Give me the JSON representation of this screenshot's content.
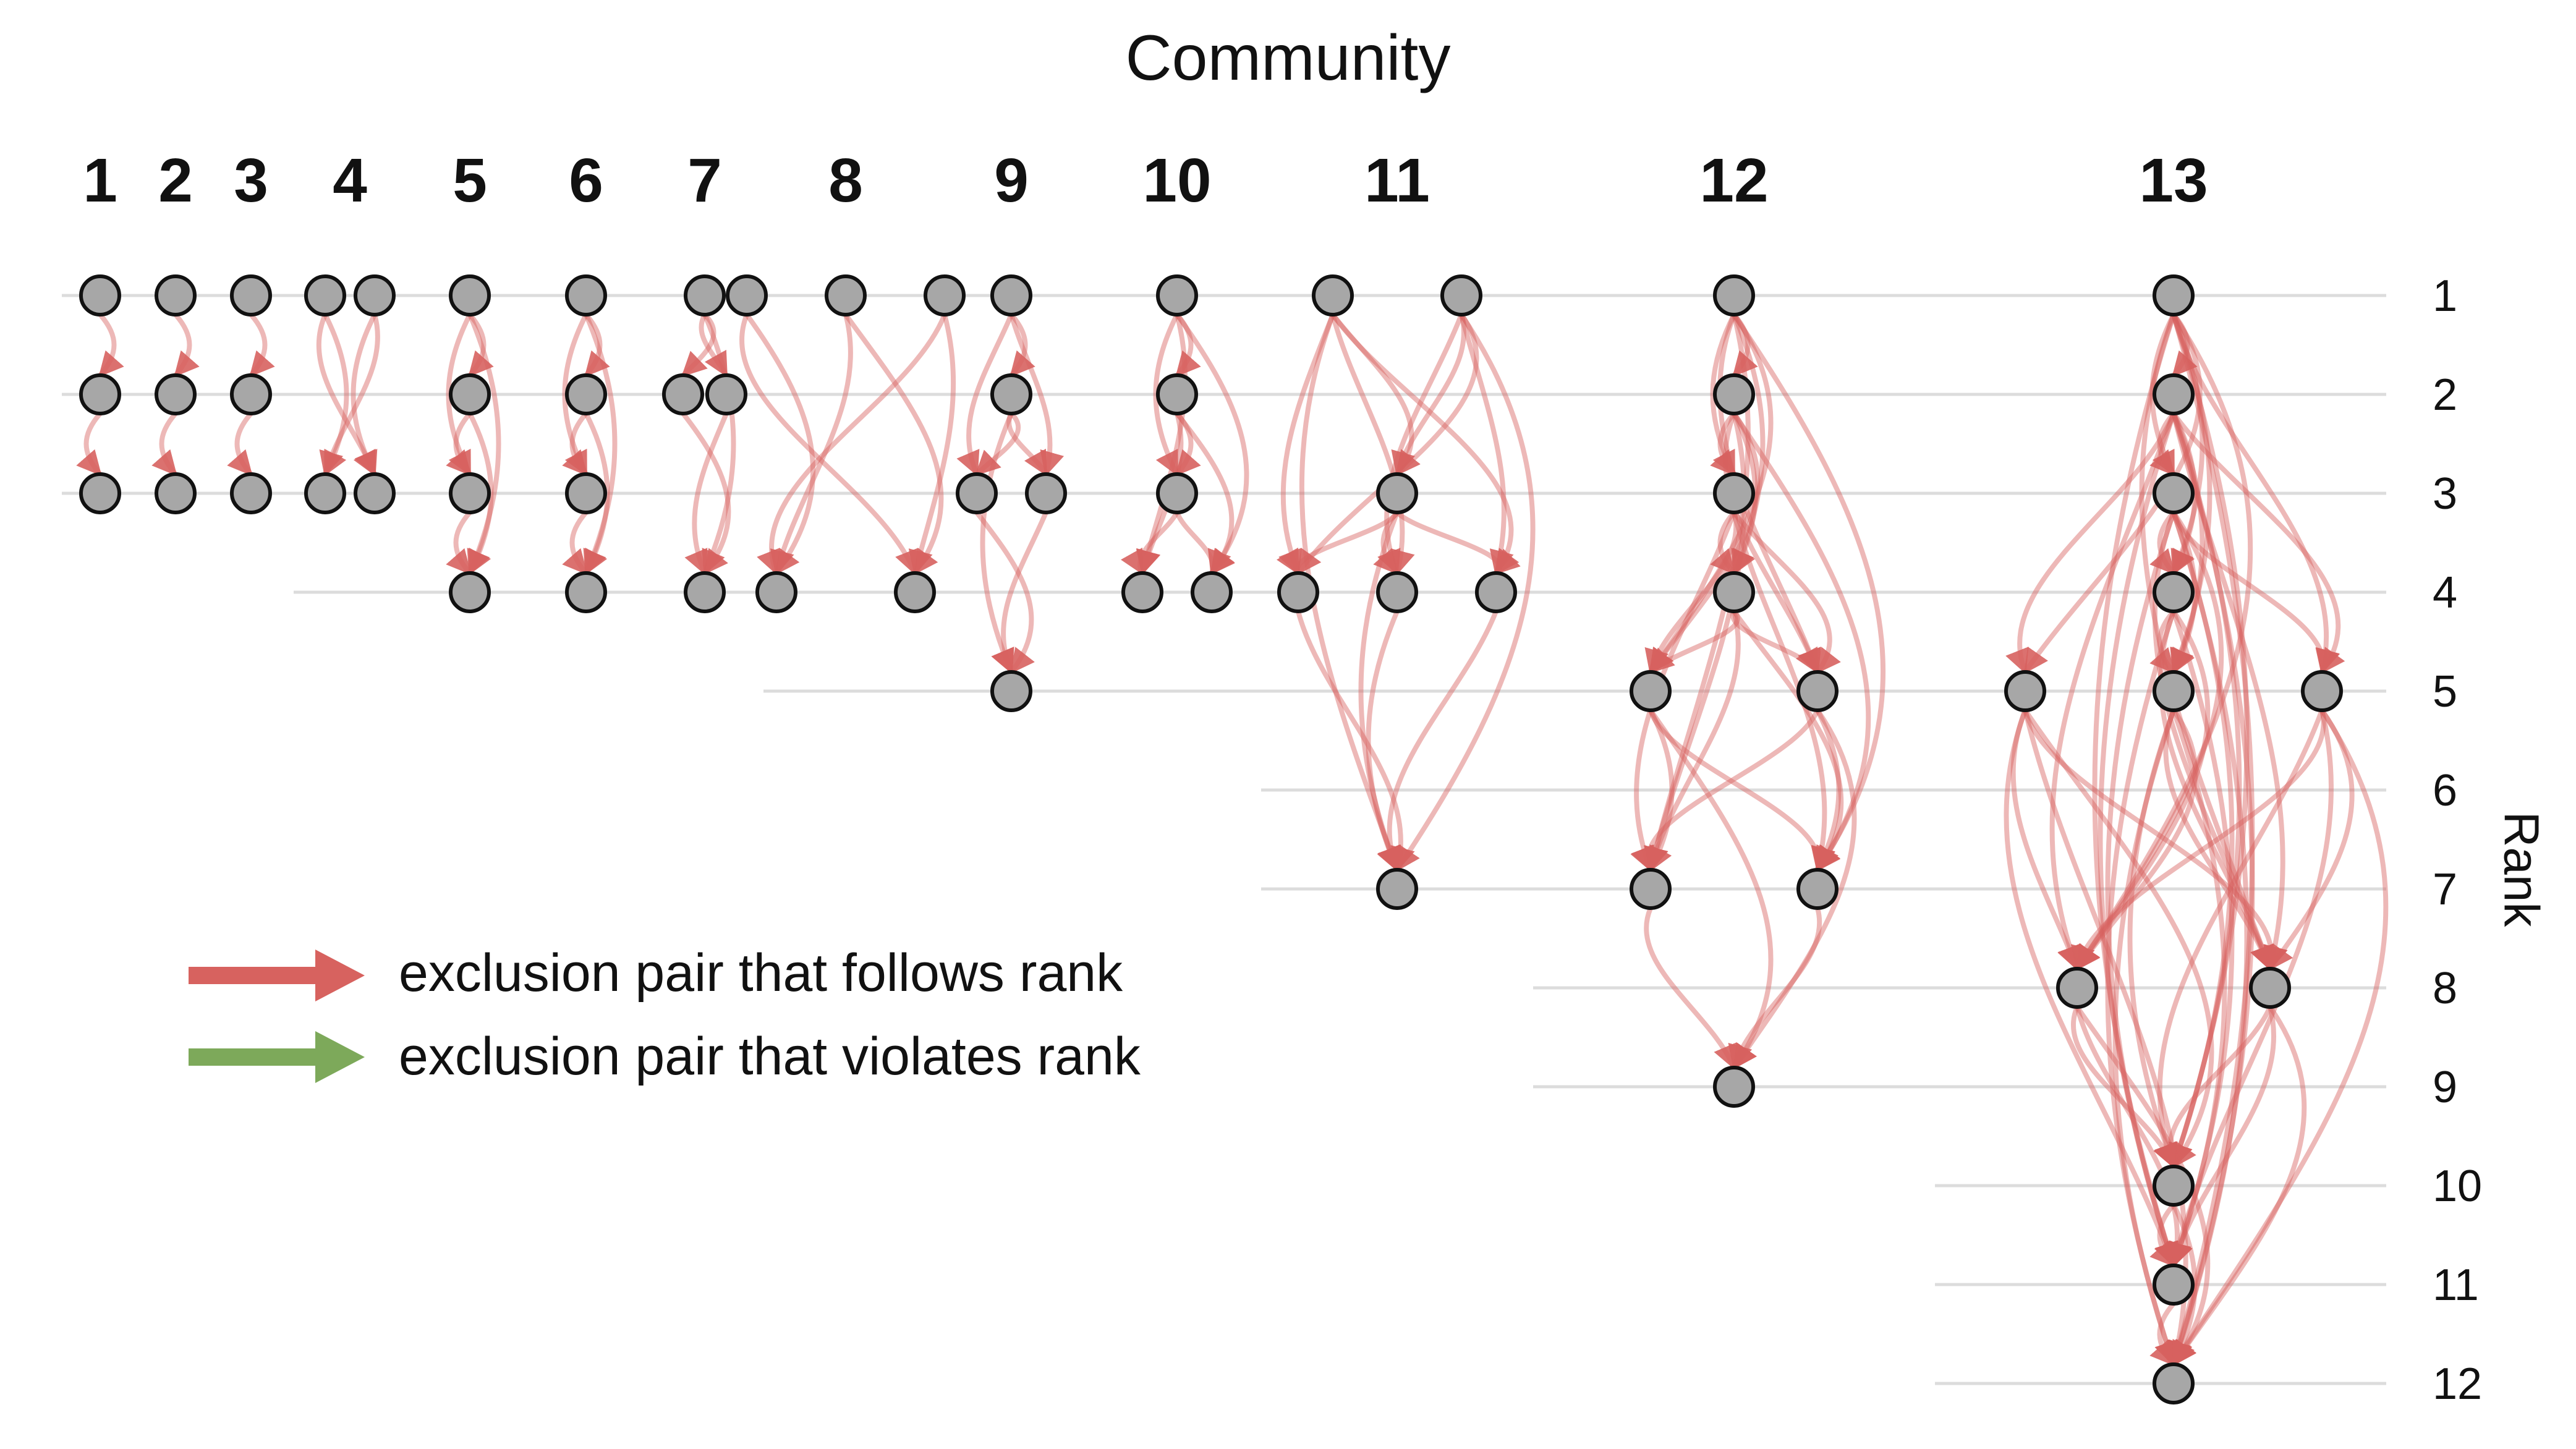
{
  "title": "Community",
  "rank_axis_label": "Rank",
  "rank_labels": [
    "1",
    "2",
    "3",
    "4",
    "5",
    "6",
    "7",
    "8",
    "9",
    "10",
    "11",
    "12"
  ],
  "communities": [
    {
      "label": "1",
      "nodes": [
        [
          1,
          0
        ],
        [
          2,
          0
        ],
        [
          3,
          0
        ]
      ],
      "edges": [
        [
          0,
          1
        ],
        [
          1,
          2
        ]
      ]
    },
    {
      "label": "2",
      "nodes": [
        [
          1,
          0
        ],
        [
          2,
          0
        ],
        [
          3,
          0
        ]
      ],
      "edges": [
        [
          0,
          1
        ],
        [
          1,
          2
        ]
      ]
    },
    {
      "label": "3",
      "nodes": [
        [
          1,
          0
        ],
        [
          2,
          0
        ],
        [
          3,
          0
        ]
      ],
      "edges": [
        [
          0,
          1
        ],
        [
          1,
          2
        ]
      ]
    },
    {
      "label": "4",
      "nodes": [
        [
          1,
          -0.5
        ],
        [
          1,
          0.5
        ],
        [
          3,
          -0.5
        ],
        [
          3,
          0.5
        ]
      ],
      "edges": [
        [
          0,
          2
        ],
        [
          0,
          3
        ],
        [
          1,
          2
        ],
        [
          1,
          3
        ]
      ]
    },
    {
      "label": "5",
      "nodes": [
        [
          1,
          0
        ],
        [
          2,
          0
        ],
        [
          3,
          0
        ],
        [
          4,
          0
        ]
      ],
      "edges": [
        [
          0,
          1
        ],
        [
          0,
          2
        ],
        [
          0,
          3
        ],
        [
          1,
          2
        ],
        [
          1,
          3
        ],
        [
          2,
          3
        ]
      ]
    },
    {
      "label": "6",
      "nodes": [
        [
          1,
          0
        ],
        [
          2,
          0
        ],
        [
          3,
          0
        ],
        [
          4,
          0
        ]
      ],
      "edges": [
        [
          0,
          1
        ],
        [
          0,
          2
        ],
        [
          0,
          3
        ],
        [
          1,
          2
        ],
        [
          1,
          3
        ],
        [
          2,
          3
        ]
      ]
    },
    {
      "label": "7",
      "nodes": [
        [
          1,
          0
        ],
        [
          2,
          -0.5
        ],
        [
          2,
          0.5
        ],
        [
          4,
          0
        ]
      ],
      "edges": [
        [
          0,
          1
        ],
        [
          0,
          2
        ],
        [
          0,
          3
        ],
        [
          1,
          3
        ],
        [
          2,
          3
        ]
      ]
    },
    {
      "label": "8",
      "nodes": [
        [
          1,
          -1
        ],
        [
          1,
          0
        ],
        [
          1,
          1
        ],
        [
          4,
          -0.7
        ],
        [
          4,
          0.7
        ]
      ],
      "edges": [
        [
          0,
          3
        ],
        [
          0,
          4
        ],
        [
          1,
          3
        ],
        [
          1,
          4
        ],
        [
          2,
          3
        ],
        [
          2,
          4
        ]
      ]
    },
    {
      "label": "9",
      "nodes": [
        [
          1,
          0
        ],
        [
          2,
          0
        ],
        [
          3,
          -0.7
        ],
        [
          3,
          0.7
        ],
        [
          5,
          0
        ]
      ],
      "edges": [
        [
          0,
          1
        ],
        [
          0,
          2
        ],
        [
          0,
          3
        ],
        [
          1,
          2
        ],
        [
          1,
          3
        ],
        [
          1,
          4
        ],
        [
          2,
          4
        ],
        [
          3,
          4
        ]
      ]
    },
    {
      "label": "10",
      "nodes": [
        [
          1,
          0
        ],
        [
          2,
          0
        ],
        [
          3,
          0
        ],
        [
          4,
          -0.7
        ],
        [
          4,
          0.7
        ]
      ],
      "edges": [
        [
          0,
          1
        ],
        [
          0,
          2
        ],
        [
          0,
          3
        ],
        [
          0,
          4
        ],
        [
          1,
          2
        ],
        [
          1,
          3
        ],
        [
          1,
          4
        ],
        [
          2,
          3
        ],
        [
          2,
          4
        ]
      ]
    },
    {
      "label": "11",
      "nodes": [
        [
          1,
          -0.65
        ],
        [
          1,
          0.65
        ],
        [
          3,
          0
        ],
        [
          4,
          -1
        ],
        [
          4,
          0
        ],
        [
          4,
          1
        ],
        [
          7,
          0
        ]
      ],
      "edges": [
        [
          0,
          2
        ],
        [
          0,
          3
        ],
        [
          0,
          4
        ],
        [
          0,
          5
        ],
        [
          0,
          6
        ],
        [
          1,
          2
        ],
        [
          1,
          3
        ],
        [
          1,
          4
        ],
        [
          1,
          5
        ],
        [
          1,
          6
        ],
        [
          2,
          3
        ],
        [
          2,
          4
        ],
        [
          2,
          5
        ],
        [
          2,
          6
        ],
        [
          3,
          6
        ],
        [
          4,
          6
        ],
        [
          5,
          6
        ]
      ]
    },
    {
      "label": "12",
      "nodes": [
        [
          1,
          0
        ],
        [
          2,
          0
        ],
        [
          3,
          0
        ],
        [
          4,
          0
        ],
        [
          5,
          -1
        ],
        [
          5,
          1
        ],
        [
          7,
          -1
        ],
        [
          7,
          1
        ],
        [
          9,
          0
        ]
      ],
      "edges": [
        [
          0,
          1
        ],
        [
          0,
          2
        ],
        [
          0,
          3
        ],
        [
          0,
          4
        ],
        [
          0,
          5
        ],
        [
          0,
          6
        ],
        [
          0,
          7
        ],
        [
          1,
          2
        ],
        [
          1,
          3
        ],
        [
          1,
          4
        ],
        [
          1,
          5
        ],
        [
          1,
          6
        ],
        [
          1,
          7
        ],
        [
          2,
          3
        ],
        [
          2,
          4
        ],
        [
          2,
          5
        ],
        [
          2,
          6
        ],
        [
          2,
          7
        ],
        [
          3,
          4
        ],
        [
          3,
          5
        ],
        [
          3,
          6
        ],
        [
          3,
          7
        ],
        [
          4,
          6
        ],
        [
          4,
          7
        ],
        [
          4,
          8
        ],
        [
          5,
          6
        ],
        [
          5,
          7
        ],
        [
          5,
          8
        ],
        [
          6,
          8
        ],
        [
          7,
          8
        ]
      ]
    },
    {
      "label": "13",
      "nodes": [
        [
          1,
          0
        ],
        [
          2,
          0
        ],
        [
          3,
          0
        ],
        [
          4,
          0
        ],
        [
          5,
          -1
        ],
        [
          5,
          0
        ],
        [
          5,
          1
        ],
        [
          8,
          -0.65
        ],
        [
          8,
          0.65
        ],
        [
          10,
          0
        ],
        [
          11,
          0
        ],
        [
          12,
          0
        ]
      ],
      "edges": [
        [
          0,
          1
        ],
        [
          0,
          2
        ],
        [
          0,
          3
        ],
        [
          0,
          4
        ],
        [
          0,
          5
        ],
        [
          0,
          6
        ],
        [
          0,
          7
        ],
        [
          0,
          8
        ],
        [
          0,
          9
        ],
        [
          0,
          10
        ],
        [
          0,
          11
        ],
        [
          1,
          2
        ],
        [
          1,
          3
        ],
        [
          1,
          4
        ],
        [
          1,
          5
        ],
        [
          1,
          6
        ],
        [
          1,
          7
        ],
        [
          1,
          8
        ],
        [
          1,
          9
        ],
        [
          1,
          10
        ],
        [
          1,
          11
        ],
        [
          2,
          3
        ],
        [
          2,
          5
        ],
        [
          2,
          6
        ],
        [
          2,
          7
        ],
        [
          2,
          8
        ],
        [
          2,
          9
        ],
        [
          2,
          10
        ],
        [
          2,
          11
        ],
        [
          3,
          5
        ],
        [
          3,
          7
        ],
        [
          3,
          8
        ],
        [
          3,
          10
        ],
        [
          3,
          11
        ],
        [
          4,
          7
        ],
        [
          4,
          8
        ],
        [
          4,
          9
        ],
        [
          4,
          10
        ],
        [
          4,
          11
        ],
        [
          5,
          7
        ],
        [
          5,
          8
        ],
        [
          5,
          9
        ],
        [
          5,
          10
        ],
        [
          5,
          11
        ],
        [
          6,
          7
        ],
        [
          6,
          8
        ],
        [
          6,
          9
        ],
        [
          6,
          10
        ],
        [
          6,
          11
        ],
        [
          7,
          9
        ],
        [
          7,
          10
        ],
        [
          7,
          11
        ],
        [
          8,
          9
        ],
        [
          8,
          10
        ],
        [
          8,
          11
        ],
        [
          9,
          10
        ],
        [
          9,
          11
        ],
        [
          10,
          11
        ]
      ],
      "violations": [
        [
          2,
          4
        ]
      ]
    }
  ],
  "legend": [
    {
      "label": "exclusion pair that follows rank",
      "color": "#d7625f"
    },
    {
      "label": "exclusion pair that violates rank",
      "color": "#7da95a"
    }
  ],
  "colors": {
    "follows": "#d7625f",
    "violates": "#7da95a",
    "node_fill": "#a7a7a7",
    "node_stroke": "#111111",
    "grid": "#dcdcdc"
  }
}
